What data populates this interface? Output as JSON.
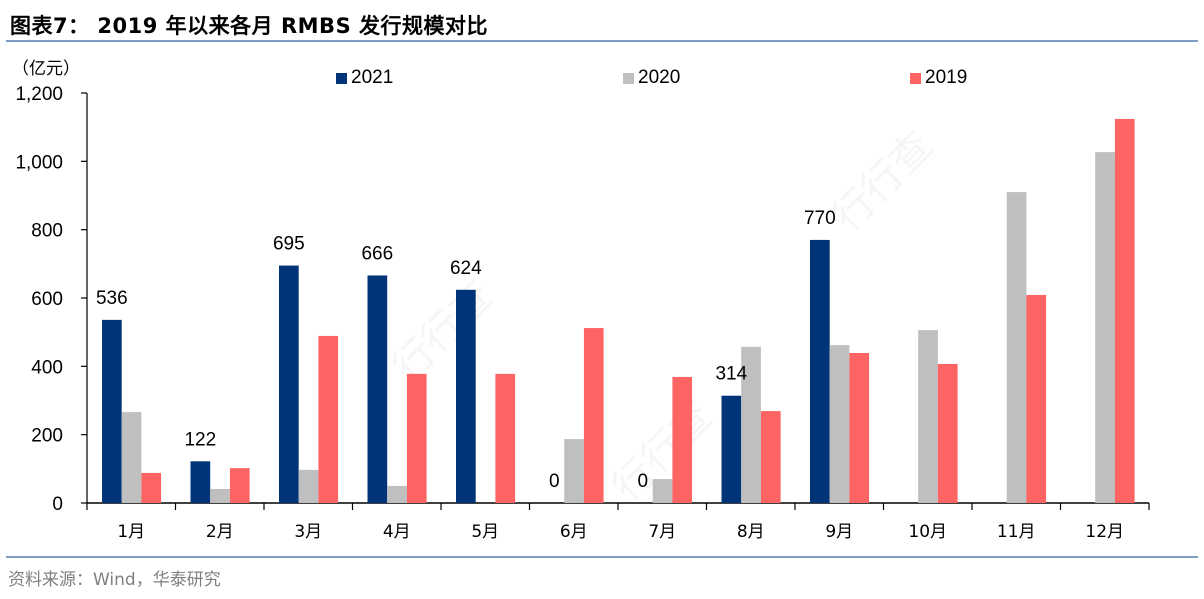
{
  "header": {
    "figure_title": "图表7：  2019 年以来各月 RMBS 发行规模对比"
  },
  "unit_label": "（亿元）",
  "footer": {
    "source": "资料来源：Wind，华泰研究"
  },
  "legend": [
    {
      "name": "2021",
      "color": "#003478"
    },
    {
      "name": "2020",
      "color": "#bfbfbf"
    },
    {
      "name": "2019",
      "color": "#ff6464"
    }
  ],
  "colors": {
    "s2021": "#003478",
    "s2020": "#bfbfbf",
    "s2019": "#ff6464",
    "rule": "#7f9cc4",
    "axis": "#000000"
  },
  "chart_data": {
    "type": "bar",
    "title": "2019 年以来各月 RMBS 发行规模对比",
    "xlabel": "",
    "ylabel": "（亿元）",
    "ylim": [
      0,
      1200
    ],
    "yticks": [
      0,
      200,
      400,
      600,
      800,
      1000,
      1200
    ],
    "ytick_labels": [
      "0",
      "200",
      "400",
      "600",
      "800",
      "1,000",
      "1,200"
    ],
    "categories": [
      "1月",
      "2月",
      "3月",
      "4月",
      "5月",
      "6月",
      "7月",
      "8月",
      "9月",
      "10月",
      "11月",
      "12月"
    ],
    "series": [
      {
        "name": "2021",
        "values": [
          536,
          122,
          695,
          666,
          624,
          0,
          0,
          314,
          770,
          null,
          null,
          null
        ]
      },
      {
        "name": "2020",
        "values": [
          266,
          41,
          97,
          50,
          0,
          187,
          70,
          457,
          462,
          506,
          910,
          1027
        ]
      },
      {
        "name": "2019",
        "values": [
          88,
          102,
          489,
          378,
          378,
          512,
          369,
          269,
          439,
          407,
          609,
          1124
        ]
      }
    ],
    "data_labels": {
      "series": "2021",
      "labels": [
        "536",
        "122",
        "695",
        "666",
        "624",
        "0",
        "0",
        "314",
        "770",
        "",
        "",
        ""
      ]
    },
    "legend_position": "top",
    "grid": false
  }
}
